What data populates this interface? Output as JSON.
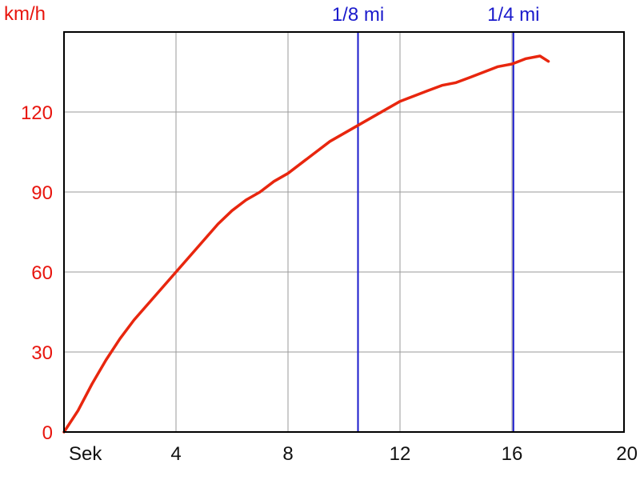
{
  "chart_data": {
    "type": "line",
    "ylabel": "km/h",
    "xlabel": "Sek",
    "xlim": [
      0,
      20
    ],
    "ylim": [
      0,
      150
    ],
    "x_ticks": [
      4,
      8,
      12,
      16,
      20
    ],
    "y_ticks": [
      0,
      30,
      60,
      90,
      120
    ],
    "grid": true,
    "colors": {
      "line": "#e8260e",
      "axis_text": "#e8150e",
      "marker": "#1a1acc",
      "grid": "#9a9a9a"
    },
    "series": [
      {
        "x": [
          0,
          0.5,
          1,
          1.5,
          2,
          2.5,
          3,
          3.5,
          4,
          4.5,
          5,
          5.5,
          6,
          6.5,
          7,
          7.5,
          8,
          8.5,
          9,
          9.5,
          10,
          10.5,
          11,
          11.5,
          12,
          12.5,
          13,
          13.5,
          14,
          14.5,
          15,
          15.5,
          16,
          16.5,
          17,
          17.3
        ],
        "y": [
          0,
          8,
          18,
          27,
          35,
          42,
          48,
          54,
          60,
          66,
          72,
          78,
          83,
          87,
          90,
          94,
          97,
          101,
          105,
          109,
          112,
          115,
          118,
          121,
          124,
          126,
          128,
          130,
          131,
          133,
          135,
          137,
          138,
          140,
          141,
          139
        ]
      }
    ],
    "markers": [
      {
        "label": "1/8 mi",
        "x": 10.5
      },
      {
        "label": "1/4 mi",
        "x": 16.05
      }
    ]
  }
}
